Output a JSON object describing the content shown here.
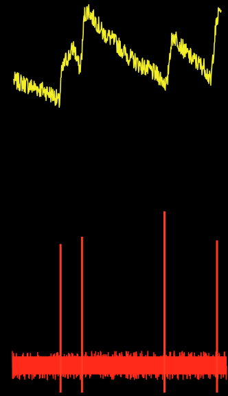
{
  "chart_data": [
    {
      "type": "line",
      "colors": {
        "trace": "#f2ee2a"
      },
      "grid": false,
      "legend": "none",
      "xlim": [
        0,
        1
      ],
      "ylim": [
        0,
        1
      ],
      "series": [
        {
          "x": [
            0.0,
            0.04,
            0.08,
            0.12,
            0.16,
            0.2,
            0.22,
            0.23,
            0.25,
            0.27,
            0.29,
            0.31,
            0.32,
            0.33,
            0.34,
            0.36,
            0.38,
            0.4,
            0.43,
            0.46,
            0.5,
            0.55,
            0.6,
            0.65,
            0.7,
            0.74,
            0.75,
            0.76,
            0.77,
            0.78,
            0.79,
            0.81,
            0.84,
            0.87,
            0.9,
            0.92,
            0.93,
            0.94,
            0.95,
            0.96,
            0.97,
            0.98,
            0.99,
            1.0
          ],
          "y": [
            0.32,
            0.3,
            0.27,
            0.25,
            0.22,
            0.18,
            0.12,
            0.38,
            0.5,
            0.55,
            0.62,
            0.47,
            0.43,
            0.6,
            0.9,
            0.95,
            0.88,
            0.84,
            0.74,
            0.71,
            0.64,
            0.54,
            0.47,
            0.42,
            0.36,
            0.28,
            0.52,
            0.66,
            0.72,
            0.7,
            0.68,
            0.62,
            0.55,
            0.5,
            0.46,
            0.44,
            0.4,
            0.35,
            0.3,
            0.52,
            0.72,
            0.85,
            0.93,
            0.97
          ]
        }
      ]
    },
    {
      "type": "line",
      "colors": {
        "trace": "#ff2a1a",
        "spike": "#ff3a22"
      },
      "grid": false,
      "legend": "none",
      "xlim": [
        0,
        1
      ],
      "ylim": [
        0,
        1
      ],
      "noise_band": [
        0.07,
        0.23
      ],
      "spikes": [
        {
          "x": 0.225,
          "peak": 0.82,
          "trough": 0.0
        },
        {
          "x": 0.325,
          "peak": 0.86,
          "trough": 0.0
        },
        {
          "x": 0.71,
          "peak": 1.0,
          "trough": 0.0
        },
        {
          "x": 0.955,
          "peak": 0.84,
          "trough": 0.0
        }
      ]
    }
  ]
}
